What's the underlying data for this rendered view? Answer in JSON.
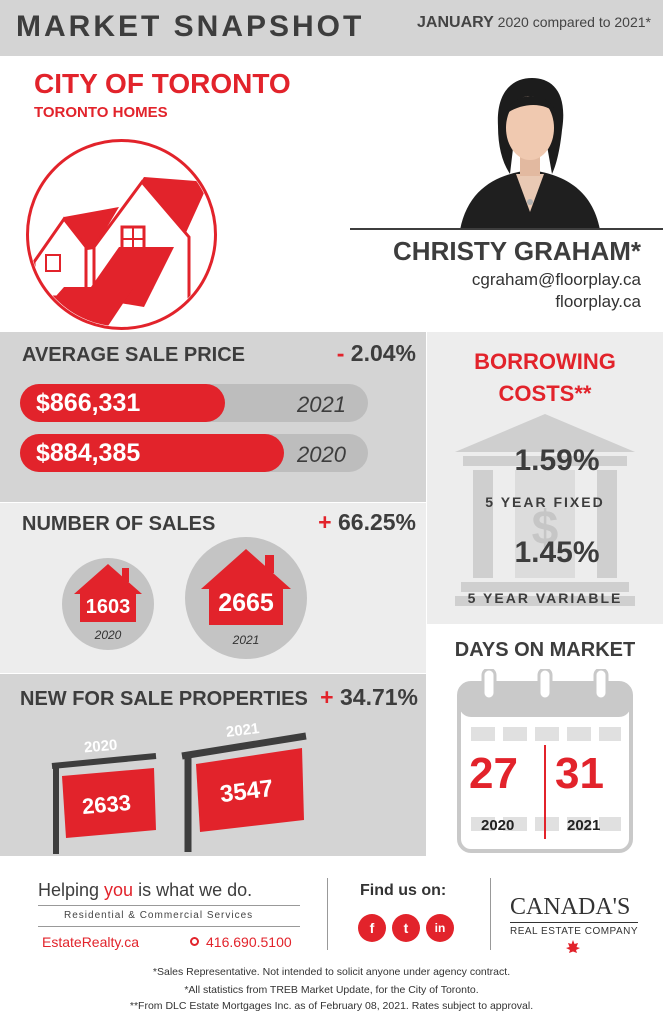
{
  "header": {
    "title": "MARKET SNAPSHOT",
    "month": "JANUARY",
    "compare": "2020 compared to 2021*"
  },
  "city": {
    "title": "CITY OF TORONTO",
    "subtitle": "TORONTO HOMES",
    "icon": "houses-icon"
  },
  "agent": {
    "name": "CHRISTY GRAHAM*",
    "email": "cgraham@floorplay.ca",
    "website": "floorplay.ca"
  },
  "average_sale_price": {
    "title": "AVERAGE SALE PRICE",
    "change_sign": "-",
    "change": "2.04%",
    "rows": [
      {
        "value": "$866,331",
        "year": "2021",
        "fill_fraction": 0.59
      },
      {
        "value": "$884,385",
        "year": "2020",
        "fill_fraction": 0.76
      }
    ]
  },
  "number_of_sales": {
    "title": "NUMBER OF SALES",
    "change_sign": "+",
    "change": "66.25%",
    "items": [
      {
        "value": "1603",
        "year": "2020"
      },
      {
        "value": "2665",
        "year": "2021"
      }
    ]
  },
  "new_for_sale": {
    "title": "NEW FOR SALE PROPERTIES",
    "change_sign": "+",
    "change": "34.71%",
    "items": [
      {
        "value": "2633",
        "year": "2020"
      },
      {
        "value": "3547",
        "year": "2021"
      }
    ]
  },
  "borrowing": {
    "title_line1": "BORROWING",
    "title_line2": "COSTS**",
    "fixed_rate": "1.59%",
    "fixed_label": "5 YEAR FIXED",
    "variable_rate": "1.45%",
    "variable_label": "5 YEAR VARIABLE",
    "icon": "bank-icon"
  },
  "days_on_market": {
    "title": "DAYS ON MARKET",
    "items": [
      {
        "value": "27",
        "year": "2020"
      },
      {
        "value": "31",
        "year": "2021"
      }
    ],
    "icon": "calendar-icon"
  },
  "footer": {
    "tagline_pre": "Helping ",
    "tagline_you": "you",
    "tagline_post": " is what we do.",
    "services": "Residential & Commercial Services",
    "site": "EstateRealty.ca",
    "phone": "416.690.5100",
    "find_us": "Find us on:",
    "social": [
      {
        "label": "f",
        "icon": "facebook-icon"
      },
      {
        "label": "t",
        "icon": "twitter-icon"
      },
      {
        "label": "in",
        "icon": "linkedin-icon"
      }
    ],
    "brand_main": "CANADA'S",
    "brand_sub": "REAL ESTATE COMPANY",
    "notes": [
      "*Sales Representative. Not intended to solicit anyone under agency contract.",
      "*All statistics from TREB Market Update, for the City of Toronto.",
      "**From DLC Estate Mortgages Inc. as of February 08, 2021. Rates subject to approval."
    ]
  },
  "colors": {
    "accent": "#e2232b",
    "dark": "#3d3d3d",
    "panel_gray": "#d4d4d4",
    "panel_light": "#ededed"
  }
}
